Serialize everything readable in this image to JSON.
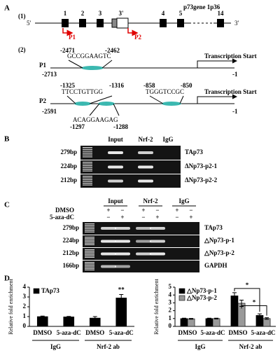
{
  "panel_labels": [
    "A",
    "B",
    "C",
    "D"
  ],
  "gene_map": {
    "section": "(1)",
    "title": "p73gene 1p36",
    "five_prime": "5'",
    "three_prime": "3'",
    "exons": [
      "1",
      "2",
      "3",
      "3'",
      "4",
      "5",
      "14"
    ],
    "promoters": [
      "P1",
      "P2"
    ]
  },
  "promoter_map": {
    "section": "(2)",
    "p1": {
      "label": "P1",
      "site_start": "-2471",
      "site_end": "-2462",
      "sequence": "GCCGGAAGTC",
      "upstream": "-2713",
      "tss": "Transcription Start",
      "end": "-1"
    },
    "p2": {
      "label": "P2",
      "upstream": "-2591",
      "tss": "Transcription Start",
      "end": "-1",
      "sites": [
        {
          "start": "-1325",
          "end": "-1316",
          "sequence": "TTCCTGTTGG"
        },
        {
          "start": "-1297",
          "end": "-1288",
          "sequence": "ACAGGAAGAG"
        },
        {
          "start": "-858",
          "end": "-850",
          "sequence": "TGGGTCCGC"
        }
      ]
    }
  },
  "gel_b": {
    "lanes": [
      "Input",
      "Nrf-2",
      "IgG"
    ],
    "sizes": [
      "279bp",
      "224bp",
      "212bp"
    ],
    "targets": [
      "ΔNp73-p2-1",
      "ΔNp73-p2-2"
    ],
    "first_target": "TAp73"
  },
  "gel_c": {
    "lanes": [
      "Input",
      "Nrf-2",
      "IgG"
    ],
    "treatments": [
      "DMSO",
      "5-aza-dC"
    ],
    "signs": [
      [
        "+",
        "−",
        "+",
        "−",
        "+",
        "−"
      ],
      [
        "−",
        "+",
        "−",
        "+",
        "−",
        "+"
      ]
    ],
    "sizes": [
      "279bp",
      "224bp",
      "212bp",
      "166bp"
    ],
    "targets": [
      "TAp73",
      "△Np73-p-1",
      "△Np73-p-2",
      "GAPDH"
    ]
  },
  "chart_data": [
    {
      "type": "bar",
      "ylabel": "Relative fold enrichment",
      "categories": [
        "DMSO",
        "5-aza-dC",
        "DMSO",
        "5-aza-dC"
      ],
      "groups": [
        "IgG",
        "Nrf-2 ab"
      ],
      "ylim": [
        0,
        4
      ],
      "yticks": [
        0,
        1,
        2,
        3,
        4
      ],
      "series": [
        {
          "name": "TAp73",
          "color": "#000000",
          "values": [
            1,
            0.97,
            0.85,
            2.9
          ],
          "errors": [
            0.05,
            0.05,
            0.15,
            0.35
          ]
        }
      ],
      "annotations": [
        "**"
      ]
    },
    {
      "type": "bar",
      "ylabel": "Relative fold enrichment",
      "categories": [
        "DMSO",
        "5-aza-dC",
        "DMSO",
        "5-aza-dC"
      ],
      "groups": [
        "IgG",
        "Nrf-2 ab"
      ],
      "ylim": [
        0,
        5
      ],
      "yticks": [
        0,
        1,
        2,
        3,
        4,
        5
      ],
      "series": [
        {
          "name": "△Np73-p-1",
          "color": "#000000",
          "values": [
            1,
            1,
            3.9,
            1.4
          ],
          "errors": [
            0.05,
            0.05,
            0.4,
            0.2
          ]
        },
        {
          "name": "△Np73-p-2",
          "color": "#999999",
          "values": [
            0.97,
            1,
            2.95,
            1.0
          ],
          "errors": [
            0.05,
            0.05,
            0.4,
            0.1
          ]
        }
      ],
      "annotations": [
        "*",
        "*"
      ]
    }
  ]
}
